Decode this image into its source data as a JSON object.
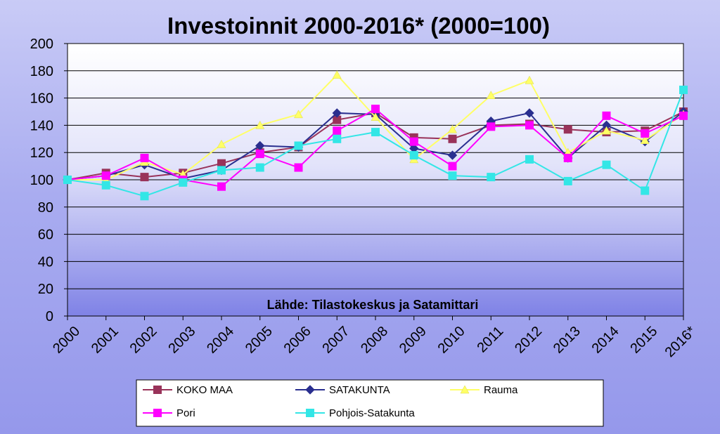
{
  "chart_data": {
    "type": "line",
    "title": "Investoinnit 2000-2016* (2000=100)",
    "annotation": "Lähde: Tilastokeskus ja Satamittari",
    "categories": [
      "2000",
      "2001",
      "2002",
      "2003",
      "2004",
      "2005",
      "2006",
      "2007",
      "2008",
      "2009",
      "2010",
      "2011",
      "2012",
      "2013",
      "2014",
      "2015",
      "2016*"
    ],
    "ylim": [
      0,
      200
    ],
    "yticks": [
      0,
      20,
      40,
      60,
      80,
      100,
      120,
      140,
      160,
      180,
      200
    ],
    "grid": true,
    "legend_position": "bottom",
    "series": [
      {
        "name": "KOKO MAA",
        "color": "#99335a",
        "marker": "square",
        "values": [
          100,
          105,
          102,
          105,
          112,
          120,
          124,
          144,
          149,
          131,
          130,
          140,
          141,
          137,
          135,
          136,
          150
        ]
      },
      {
        "name": "SATAKUNTA",
        "color": "#2a2f8f",
        "marker": "diamond",
        "values": [
          100,
          103,
          111,
          101,
          107,
          125,
          124,
          149,
          148,
          123,
          118,
          143,
          149,
          116,
          140,
          128,
          150
        ]
      },
      {
        "name": "Rauma",
        "color": "#ffff66",
        "marker": "triangle",
        "values": [
          100,
          100,
          113,
          104,
          126,
          140,
          148,
          177,
          146,
          115,
          137,
          162,
          173,
          120,
          136,
          129,
          148
        ]
      },
      {
        "name": "Pori",
        "color": "#ff00ff",
        "marker": "square",
        "values": [
          100,
          103,
          116,
          100,
          95,
          119,
          109,
          136,
          152,
          128,
          110,
          139,
          140,
          116,
          147,
          134,
          147
        ]
      },
      {
        "name": "Pohjois-Satakunta",
        "color": "#33e6e6",
        "marker": "square",
        "values": [
          100,
          96,
          88,
          98,
          107,
          109,
          125,
          130,
          135,
          118,
          103,
          102,
          115,
          99,
          111,
          92,
          166
        ]
      }
    ]
  }
}
